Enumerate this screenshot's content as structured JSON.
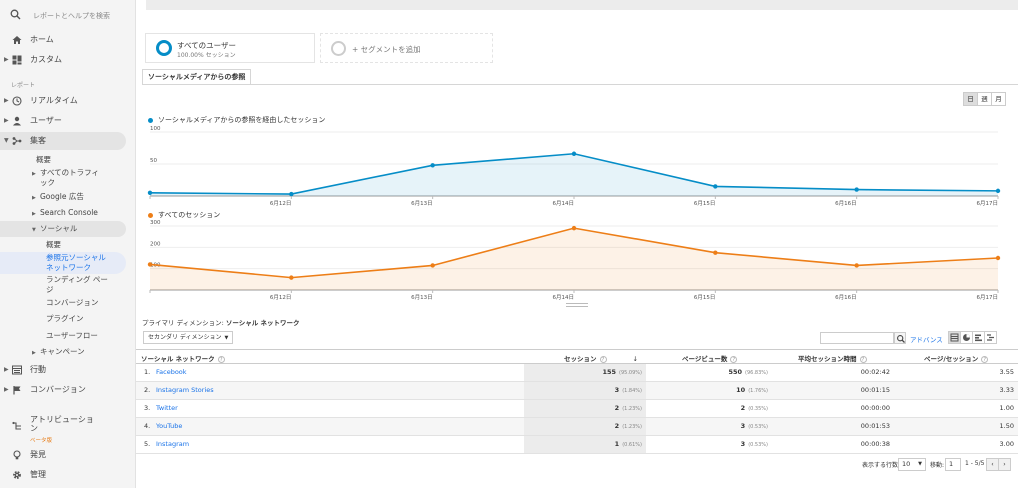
{
  "sidebar": {
    "search_placeholder": "レポートとヘルプを検索",
    "home": "ホーム",
    "custom": "カスタム",
    "reports_section": "レポート",
    "realtime": "リアルタイム",
    "users": "ユーザー",
    "acquisition": "集客",
    "acq_sub": {
      "overview": "概要",
      "all_traffic_1": "すべてのトラフィ",
      "all_traffic_2": "ック",
      "google_ads": "Google 広告",
      "search_console": "Search Console",
      "social": "ソーシャル",
      "social_sub": {
        "overview": "概要",
        "network_1": "参照元ソーシャル",
        "network_2": "ネットワーク",
        "landing_1": "ランディング ペー",
        "landing_2": "ジ",
        "conversions": "コンバージョン",
        "plugins": "プラグイン",
        "user_flow": "ユーザーフロー"
      },
      "campaigns": "キャンペーン"
    },
    "behavior": "行動",
    "conversions": "コンバージョン",
    "attribution_1": "アトリビューショ",
    "attribution_2": "ン",
    "beta": "ベータ版",
    "discover": "発見",
    "admin": "管理"
  },
  "segments": {
    "all_users": "すべてのユーザー",
    "all_users_sub": "100.00% セッション",
    "add_segment": "+ セグメントを追加"
  },
  "tab_label": "ソーシャルメディアからの参照",
  "period": {
    "day": "日",
    "week": "週",
    "month": "月"
  },
  "colors": {
    "blue": "#058dc7",
    "orange": "#ed7e17",
    "link": "#1a73e8"
  },
  "chart_data": [
    {
      "type": "area",
      "title": "ソーシャルメディアからの参照を経由したセッション",
      "x": [
        "",
        "6月12日",
        "6月13日",
        "6月14日",
        "6月15日",
        "6月16日",
        "6月17日"
      ],
      "series": [
        {
          "name": "ソーシャルメディアからの参照を経由したセッション",
          "values": [
            5,
            3,
            48,
            66,
            15,
            10,
            8
          ]
        }
      ],
      "ylim": [
        0,
        100
      ],
      "yticks": [
        "100",
        "50"
      ]
    },
    {
      "type": "area",
      "title": "すべてのセッション",
      "x": [
        "",
        "6月12日",
        "6月13日",
        "6月14日",
        "6月15日",
        "6月16日",
        "6月17日"
      ],
      "series": [
        {
          "name": "すべてのセッション",
          "values": [
            120,
            58,
            115,
            290,
            175,
            115,
            150
          ]
        }
      ],
      "ylim": [
        0,
        300
      ],
      "yticks": [
        "300",
        "200",
        "100"
      ]
    }
  ],
  "table": {
    "primary_dim_label": "プライマリ ディメンション:",
    "primary_dim_value": "ソーシャル ネットワーク",
    "secondary_dim": "セカンダリ ディメンション",
    "advanced": "アドバンス",
    "headers": {
      "network": "ソーシャル ネットワーク",
      "sessions": "セッション",
      "pageviews": "ページビュー数",
      "avg_duration": "平均セッション時間",
      "pages_per_session": "ページ/セッション"
    },
    "rows": [
      {
        "num": "1.",
        "network": "Facebook",
        "sessions": "155",
        "sessions_pct": "(95.09%)",
        "pageviews": "550",
        "pageviews_pct": "(96.83%)",
        "duration": "00:02:42",
        "pps": "3.55"
      },
      {
        "num": "2.",
        "network": "Instagram Stories",
        "sessions": "3",
        "sessions_pct": "(1.84%)",
        "pageviews": "10",
        "pageviews_pct": "(1.76%)",
        "duration": "00:01:15",
        "pps": "3.33"
      },
      {
        "num": "3.",
        "network": "Twitter",
        "sessions": "2",
        "sessions_pct": "(1.23%)",
        "pageviews": "2",
        "pageviews_pct": "(0.35%)",
        "duration": "00:00:00",
        "pps": "1.00"
      },
      {
        "num": "4.",
        "network": "YouTube",
        "sessions": "2",
        "sessions_pct": "(1.23%)",
        "pageviews": "3",
        "pageviews_pct": "(0.53%)",
        "duration": "00:01:53",
        "pps": "1.50"
      },
      {
        "num": "5.",
        "network": "Instagram",
        "sessions": "1",
        "sessions_pct": "(0.61%)",
        "pageviews": "3",
        "pageviews_pct": "(0.53%)",
        "duration": "00:00:38",
        "pps": "3.00"
      }
    ],
    "pager": {
      "rows_label": "表示する行数:",
      "rows_value": "10",
      "goto_label": "移動:",
      "goto_value": "1",
      "range": "1 - 5/5",
      "prev": "‹",
      "next": "›"
    }
  }
}
